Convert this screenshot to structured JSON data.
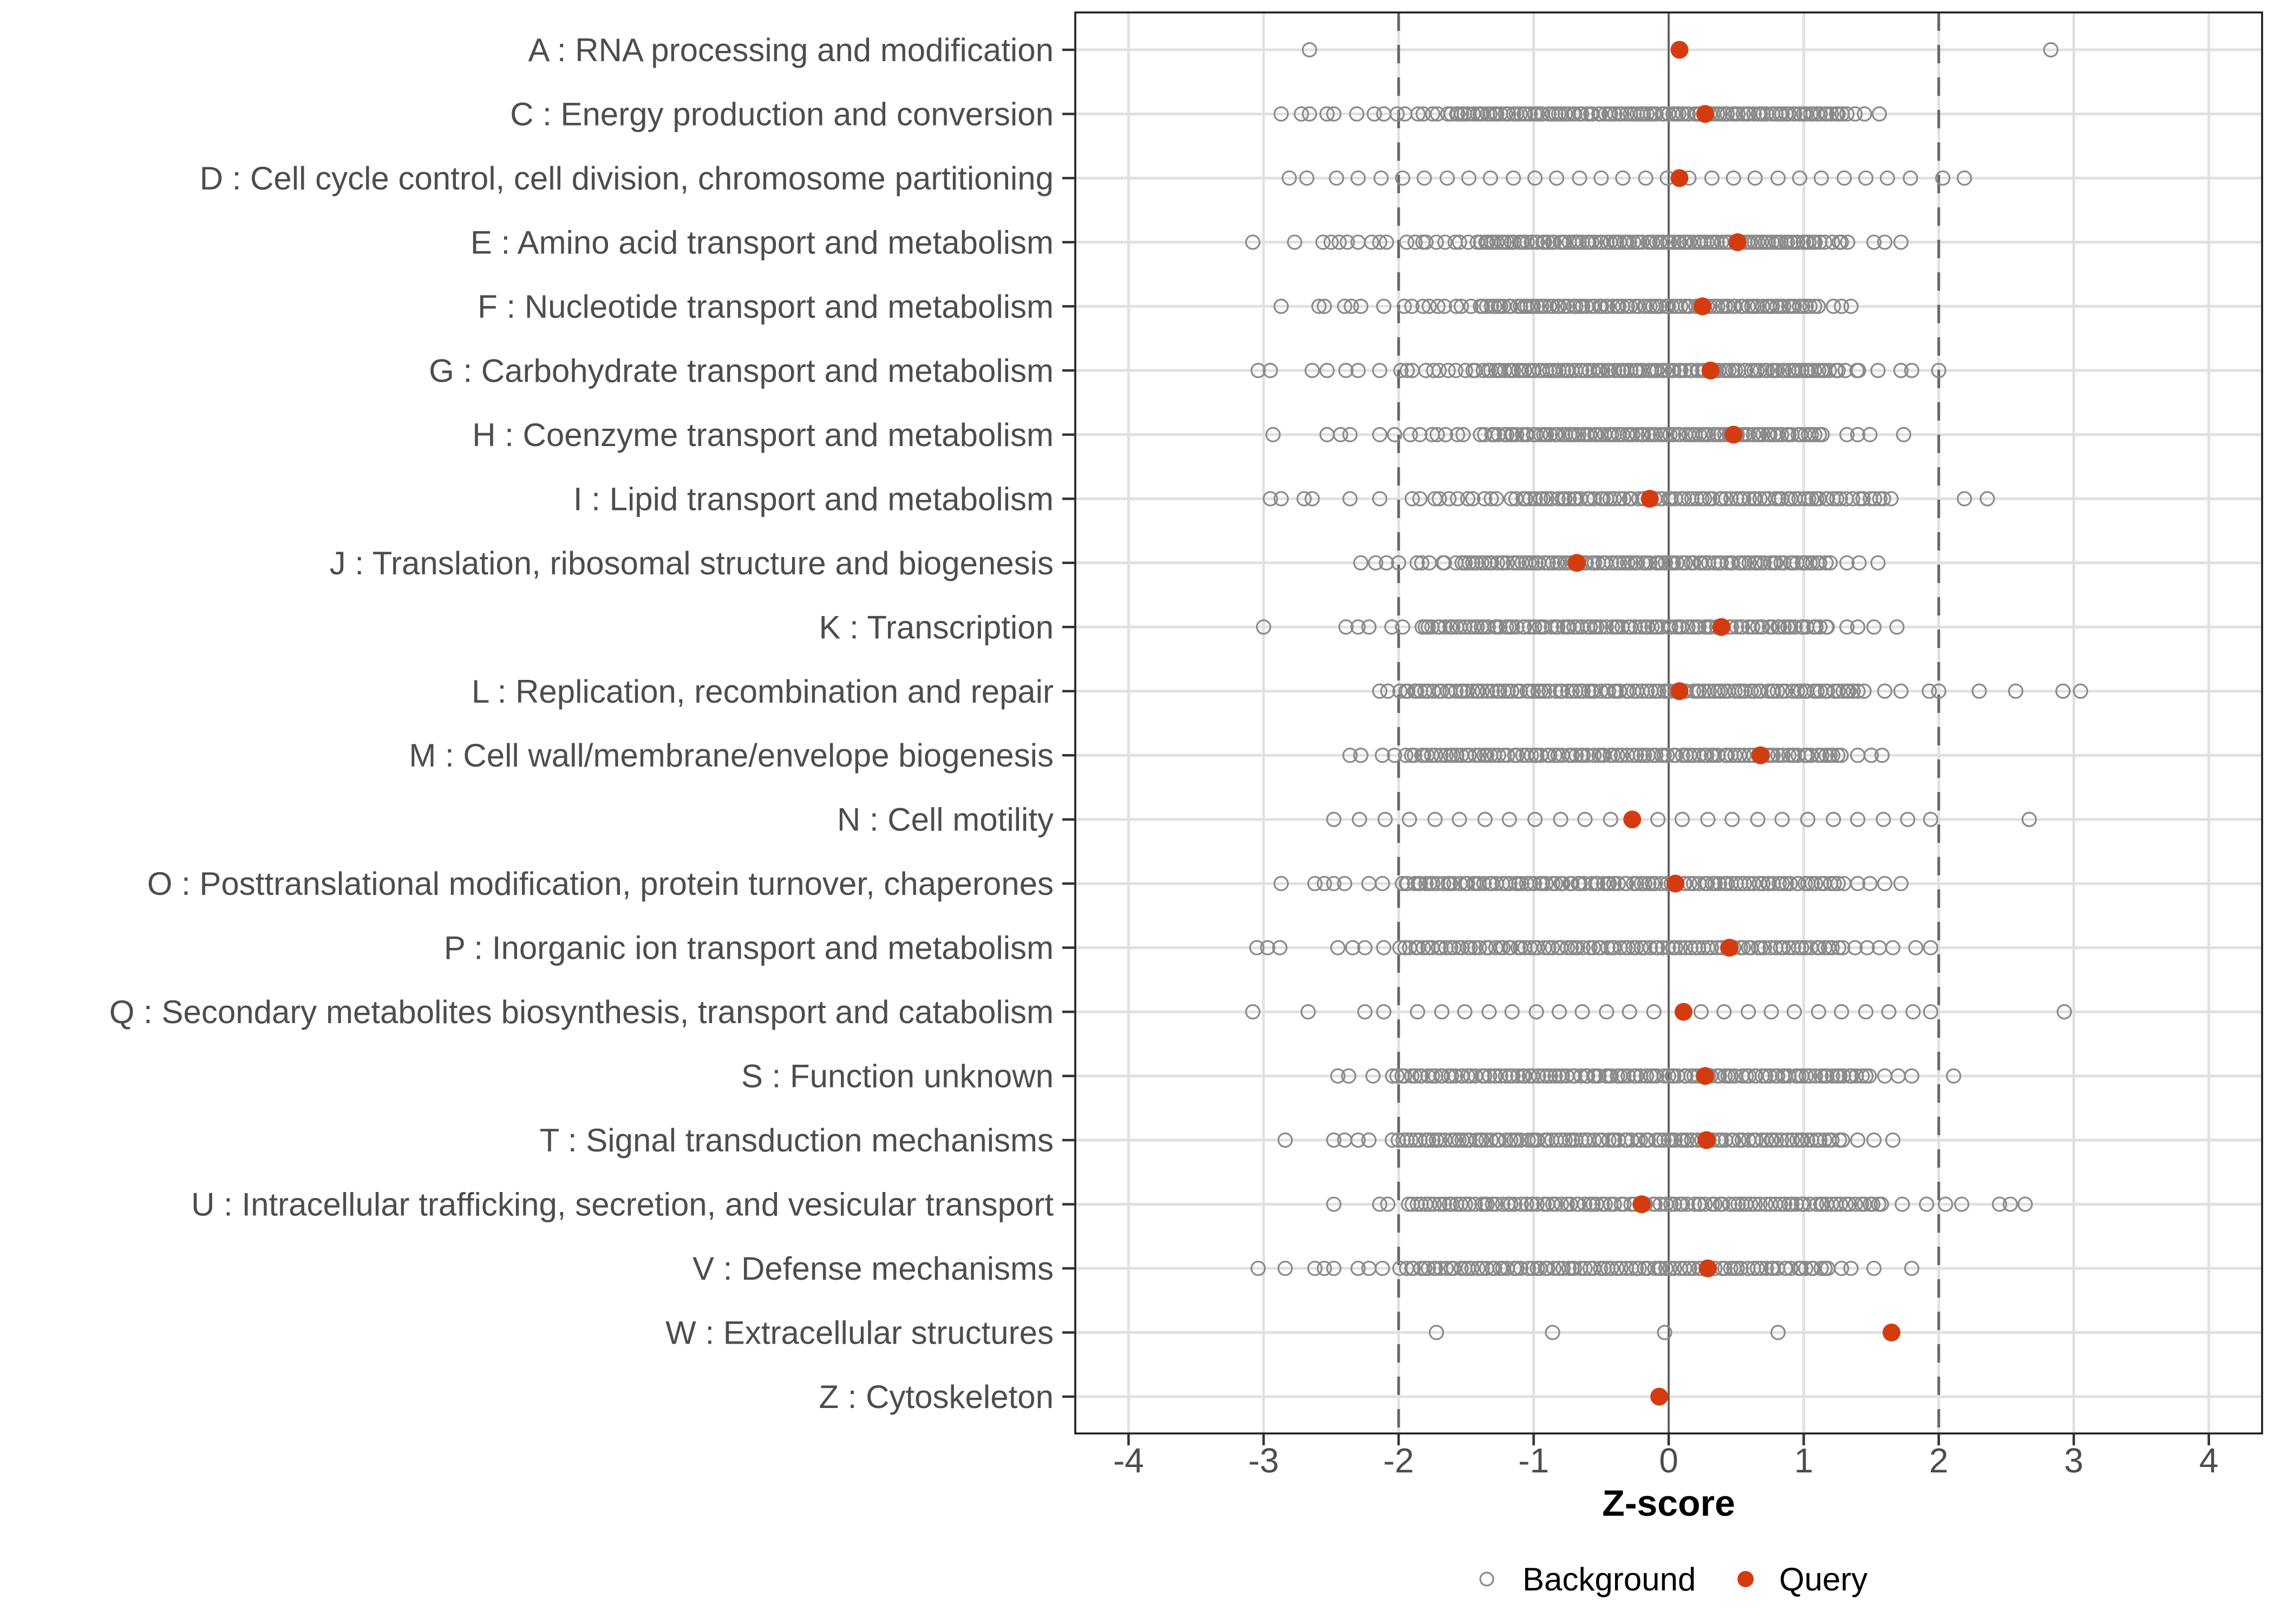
{
  "chart_data": {
    "type": "scatter",
    "title": "",
    "xlabel": "Z-score",
    "xlim": [
      -4.4,
      4.4
    ],
    "xticks": [
      -4,
      -3,
      -2,
      -1,
      0,
      1,
      2,
      3,
      4
    ],
    "grid": "major-only",
    "reference_lines": {
      "solid": [
        0
      ],
      "dashed": [
        -2,
        2
      ]
    },
    "legend": {
      "position": "bottom-center",
      "items": [
        {
          "label": "Background",
          "marker": "open-circle"
        },
        {
          "label": "Query",
          "marker": "filled-circle"
        }
      ]
    },
    "colors": {
      "query": "#d43c10",
      "background_stroke": "#8a8a8a",
      "grid_line": "#e0e0e0",
      "dashed_line": "#666666",
      "zero_line": "#595959",
      "panel_border": "#1a1a1a",
      "axis_text": "#4d4d4d",
      "tick_mark": "#333333",
      "title_text": "#000000",
      "legend_text": "#000000"
    },
    "categories": [
      {
        "code": "A",
        "label": "A : RNA processing and modification",
        "query": 0.08,
        "background": {
          "points": [
            -2.66,
            2.83
          ],
          "runs": []
        }
      },
      {
        "code": "C",
        "label": "C : Energy production and conversion",
        "query": 0.27,
        "background": {
          "points": [
            -2.87,
            -2.72,
            -2.66,
            -2.53,
            -2.48,
            -2.31,
            -2.18,
            -2.11,
            1.32,
            1.38,
            1.45,
            1.56
          ],
          "runs": [
            [
              -2.02,
              -1.62,
              7
            ],
            [
              -1.62,
              1.22,
              108
            ],
            [
              1.22,
              1.3,
              3
            ]
          ]
        }
      },
      {
        "code": "D",
        "label": "D : Cell cycle control, cell division, chromosome partitioning",
        "query": 0.08,
        "background": {
          "points": [
            -2.81,
            -2.68,
            -2.46,
            -2.3,
            -2.13,
            -1.97,
            -1.81,
            -1.64,
            -1.48,
            -1.32,
            -1.15,
            -0.99,
            -0.83,
            -0.66,
            -0.5,
            -0.34,
            -0.17,
            -0.01,
            0.15,
            0.32,
            0.48,
            0.64,
            0.81,
            0.97,
            1.13,
            1.3,
            1.46,
            1.62,
            1.79,
            2.03,
            2.19
          ],
          "runs": []
        }
      },
      {
        "code": "E",
        "label": "E : Amino acid transport and metabolism",
        "query": 0.51,
        "background": {
          "points": [
            -3.08,
            -2.77,
            -2.56,
            -2.5,
            -2.44,
            -2.38,
            -2.3,
            -2.2,
            -2.14,
            -2.09,
            1.52,
            1.6,
            1.72
          ],
          "runs": [
            [
              -1.98,
              -1.4,
              10
            ],
            [
              -1.4,
              1.1,
              100
            ],
            [
              1.1,
              1.35,
              6
            ]
          ]
        }
      },
      {
        "code": "F",
        "label": "F : Nucleotide transport and metabolism",
        "query": 0.25,
        "background": {
          "points": [
            -2.87,
            -2.59,
            -2.55,
            -2.4,
            -2.35,
            -2.28,
            -2.11,
            1.22,
            1.28,
            1.35
          ],
          "runs": [
            [
              -2.0,
              -1.42,
              9
            ],
            [
              -1.42,
              1.12,
              92
            ]
          ]
        }
      },
      {
        "code": "G",
        "label": "G : Carbohydrate transport and metabolism",
        "query": 0.31,
        "background": {
          "points": [
            -3.04,
            -2.95,
            -2.64,
            -2.53,
            -2.39,
            -2.3,
            -2.14,
            1.55,
            1.72,
            1.8,
            2.0
          ],
          "runs": [
            [
              -2.02,
              -1.38,
              11
            ],
            [
              -1.38,
              1.2,
              102
            ],
            [
              1.2,
              1.45,
              5
            ]
          ]
        }
      },
      {
        "code": "H",
        "label": "H : Coenzyme transport and metabolism",
        "query": 0.48,
        "background": {
          "points": [
            -2.93,
            -2.53,
            -2.43,
            -2.36,
            -2.14,
            -2.03,
            1.32,
            1.4,
            1.49,
            1.74
          ],
          "runs": [
            [
              -1.95,
              -1.32,
              9
            ],
            [
              -1.32,
              1.15,
              92
            ]
          ]
        }
      },
      {
        "code": "I",
        "label": "I : Lipid transport and metabolism",
        "query": -0.14,
        "background": {
          "points": [
            -2.95,
            -2.87,
            -2.7,
            -2.64,
            -2.36,
            -2.14,
            2.19,
            2.36
          ],
          "runs": [
            [
              -1.91,
              -1.1,
              13
            ],
            [
              -1.1,
              1.3,
              76
            ],
            [
              1.3,
              1.66,
              9
            ]
          ]
        }
      },
      {
        "code": "J",
        "label": "J : Translation, ribosomal structure and biogenesis",
        "query": -0.68,
        "background": {
          "points": [
            -2.28,
            -2.17,
            -2.09,
            -2.0,
            1.32,
            1.41,
            1.55
          ],
          "runs": [
            [
              -1.9,
              -1.55,
              6
            ],
            [
              -1.55,
              1.2,
              94
            ]
          ]
        }
      },
      {
        "code": "K",
        "label": "K : Transcription",
        "query": 0.39,
        "background": {
          "points": [
            -3.0,
            -2.39,
            -2.3,
            -2.22,
            -2.05,
            -1.97,
            1.32,
            1.4,
            1.52,
            1.69
          ],
          "runs": [
            [
              -1.85,
              1.2,
              102
            ]
          ]
        }
      },
      {
        "code": "L",
        "label": "L : Replication, recombination and repair",
        "query": 0.08,
        "background": {
          "points": [
            -2.14,
            -2.08,
            1.6,
            1.72,
            1.93,
            2.0,
            2.3,
            2.57,
            2.92,
            3.05
          ],
          "runs": [
            [
              -2.0,
              1.45,
              112
            ]
          ]
        }
      },
      {
        "code": "M",
        "label": "M : Cell wall/membrane/envelope biogenesis",
        "query": 0.68,
        "background": {
          "points": [
            -2.36,
            -2.28,
            -2.12,
            -2.03,
            1.4,
            1.5,
            1.58
          ],
          "runs": [
            [
              -1.95,
              1.3,
              104
            ]
          ]
        }
      },
      {
        "code": "N",
        "label": "N : Cell motility",
        "query": -0.27,
        "background": {
          "points": [
            -2.48,
            -2.29,
            -2.1,
            -1.92,
            -1.73,
            -1.55,
            -1.36,
            -1.18,
            -0.99,
            -0.8,
            -0.62,
            -0.43,
            -0.08,
            0.1,
            0.29,
            0.47,
            0.66,
            0.84,
            1.03,
            1.22,
            1.4,
            1.59,
            1.77,
            1.94,
            2.67
          ],
          "runs": []
        }
      },
      {
        "code": "O",
        "label": "O : Posttranslational modification, protein turnover, chaperones",
        "query": 0.05,
        "background": {
          "points": [
            -2.87,
            -2.62,
            -2.55,
            -2.48,
            -2.4,
            -2.22,
            -2.12,
            1.4,
            1.49,
            1.6,
            1.72
          ],
          "runs": [
            [
              -2.0,
              1.3,
              106
            ]
          ]
        }
      },
      {
        "code": "P",
        "label": "P : Inorganic ion transport and metabolism",
        "query": 0.45,
        "background": {
          "points": [
            -3.05,
            -2.97,
            -2.88,
            -2.45,
            -2.34,
            -2.25,
            -2.11,
            1.38,
            1.47,
            1.56,
            1.66,
            1.83,
            1.94
          ],
          "runs": [
            [
              -2.0,
              1.3,
              100
            ]
          ]
        }
      },
      {
        "code": "Q",
        "label": "Q : Secondary metabolites biosynthesis, transport and catabolism",
        "query": 0.11,
        "background": {
          "points": [
            -3.08,
            -2.67,
            -2.25,
            -2.11,
            -1.86,
            -1.68,
            -1.51,
            -1.33,
            -1.16,
            -0.98,
            -0.81,
            -0.64,
            -0.46,
            -0.29,
            -0.11,
            0.24,
            0.41,
            0.59,
            0.76,
            0.93,
            1.11,
            1.28,
            1.46,
            1.63,
            1.81,
            1.94,
            2.93
          ],
          "runs": []
        }
      },
      {
        "code": "S",
        "label": "S : Function unknown",
        "query": 0.27,
        "background": {
          "points": [
            -2.45,
            -2.37,
            -2.19,
            1.6,
            1.7,
            1.8,
            2.11
          ],
          "runs": [
            [
              -2.05,
              1.5,
              116
            ]
          ]
        }
      },
      {
        "code": "T",
        "label": "T : Signal transduction mechanisms",
        "query": 0.28,
        "background": {
          "points": [
            -2.84,
            -2.48,
            -2.4,
            -2.3,
            -2.22,
            1.4,
            1.52,
            1.66
          ],
          "runs": [
            [
              -2.05,
              1.3,
              106
            ]
          ]
        }
      },
      {
        "code": "U",
        "label": "U : Intracellular trafficking, secretion, and vesicular transport",
        "query": -0.2,
        "background": {
          "points": [
            -2.48,
            -2.14,
            -2.08,
            1.73,
            1.91,
            2.05,
            2.17,
            2.45,
            2.53,
            2.64
          ],
          "runs": [
            [
              -1.95,
              1.6,
              106
            ]
          ]
        }
      },
      {
        "code": "V",
        "label": "V : Defense mechanisms",
        "query": 0.29,
        "background": {
          "points": [
            -3.04,
            -2.84,
            -2.62,
            -2.55,
            -2.48,
            -2.3,
            -2.22,
            -2.12,
            1.28,
            1.35,
            1.52,
            1.8
          ],
          "runs": [
            [
              -2.0,
              1.2,
              96
            ]
          ]
        }
      },
      {
        "code": "W",
        "label": "W : Extracellular structures",
        "query": 1.65,
        "background": {
          "points": [
            -1.72,
            -0.86,
            -0.03,
            0.81
          ],
          "runs": []
        }
      },
      {
        "code": "Z",
        "label": "Z : Cytoskeleton",
        "query": -0.07,
        "background": {
          "points": [],
          "runs": []
        }
      }
    ]
  }
}
